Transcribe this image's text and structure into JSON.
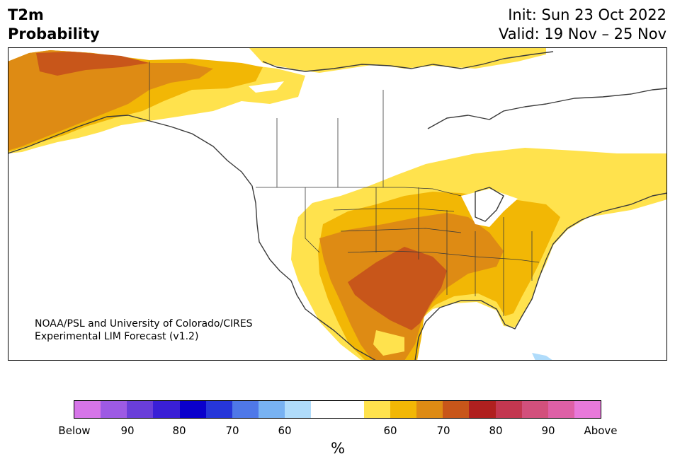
{
  "header": {
    "variable": "T2m",
    "metric": "Probability",
    "init": "Init: Sun 23 Oct 2022",
    "valid": "Valid: 19 Nov – 25 Nov"
  },
  "credit": {
    "line1": "NOAA/PSL and University of Colorado/CIRES",
    "line2": "Experimental LIM Forecast (v1.2)"
  },
  "colorbar": {
    "colors": [
      "#d675e8",
      "#9d5ae4",
      "#6a3ed9",
      "#3a1fd6",
      "#0a00cc",
      "#2636d9",
      "#4f78e8",
      "#78b2f2",
      "#b0dcfb",
      "#ffffff",
      "#ffffff",
      "#ffe24d",
      "#f2b705",
      "#de8b14",
      "#c8561a",
      "#b0201f",
      "#c33750",
      "#d2507c",
      "#de60a6",
      "#e879da"
    ],
    "labels": [
      "Below",
      "90",
      "80",
      "70",
      "60",
      "60",
      "70",
      "80",
      "90",
      "Above"
    ],
    "unit": "%"
  },
  "map": {
    "region": "North America",
    "legend_colors": {
      "above_60": "#ffe24d",
      "above_65": "#f2b705",
      "above_70": "#de8b14",
      "above_75": "#c8561a",
      "below_60": "#b0dcfb",
      "land_outline": "#3a3a3a"
    }
  }
}
